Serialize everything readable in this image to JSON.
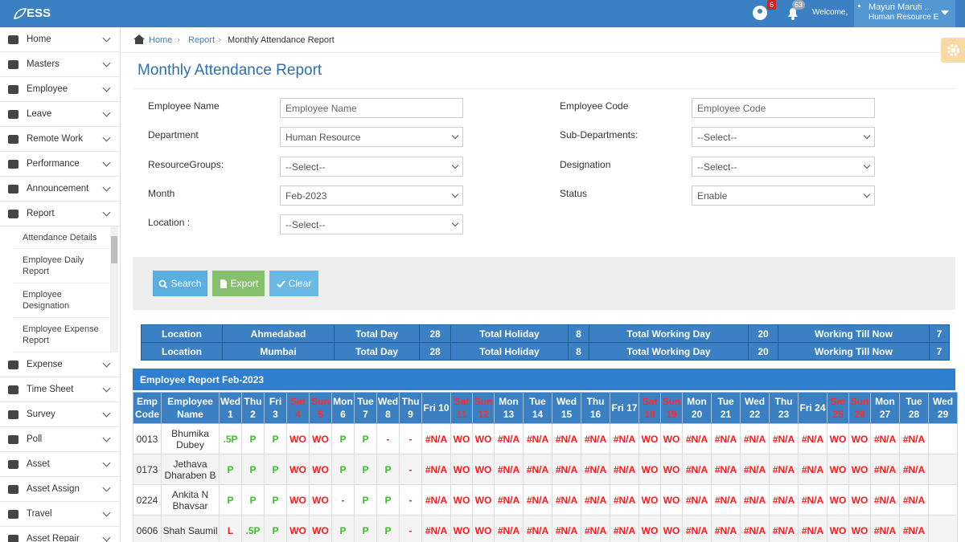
{
  "header": {
    "logo": "ESS",
    "badges": [
      6,
      63
    ],
    "welcome": "Welcome,",
    "user_name": "Mayuri Maruti ...",
    "user_role": "Human Resource E"
  },
  "menu": [
    {
      "label": "Home"
    },
    {
      "label": "Masters"
    },
    {
      "label": "Employee"
    },
    {
      "label": "Leave"
    },
    {
      "label": "Remote Work"
    },
    {
      "label": "Performance"
    },
    {
      "label": "Announcement"
    },
    {
      "label": "Report",
      "children": [
        "Attendance Details",
        "Employee Daily Report",
        "Employee Designation",
        "Employee Expense Report"
      ]
    },
    {
      "label": "Expense"
    },
    {
      "label": "Time Sheet"
    },
    {
      "label": "Survey"
    },
    {
      "label": "Poll"
    },
    {
      "label": "Asset"
    },
    {
      "label": "Asset Assign"
    },
    {
      "label": "Travel"
    },
    {
      "label": "Asset Repair"
    }
  ],
  "breadcrumb": [
    "Home",
    "Report",
    "Monthly Attendance Report"
  ],
  "page_title": "Monthly Attendance Report",
  "filters": {
    "left": [
      {
        "label": "Employee Name",
        "value": "Employee Name",
        "kind": "text"
      },
      {
        "label": "Department",
        "value": "Human Resource",
        "kind": "select"
      },
      {
        "label": "ResourceGroups:",
        "value": "--Select--",
        "kind": "select"
      },
      {
        "label": "Month",
        "value": "Feb-2023",
        "kind": "select"
      },
      {
        "label": "Location :",
        "value": "--Select--",
        "kind": "select"
      }
    ],
    "right": [
      {
        "label": "Employee Code",
        "value": "Employee Code",
        "kind": "text"
      },
      {
        "label": "Sub-Departments:",
        "value": "--Select--",
        "kind": "select"
      },
      {
        "label": "Designation",
        "value": "--Select--",
        "kind": "select"
      },
      {
        "label": "Status",
        "value": "Enable",
        "kind": "select"
      }
    ]
  },
  "buttons": [
    {
      "label": "Search",
      "color": "#5aaee0"
    },
    {
      "label": "Export",
      "color": "#86c06c"
    },
    {
      "label": "Clear",
      "color": "#6ab8e6"
    }
  ],
  "summary": [
    [
      "Location",
      "Ahmedabad",
      "Total Day",
      28,
      "Total Holiday",
      8,
      "Total Working Day",
      20,
      "Working Till Now",
      7
    ],
    [
      "Location",
      "Mumbai",
      "Total Day",
      28,
      "Total Holiday",
      8,
      "Total Working Day",
      20,
      "Working Till Now",
      7
    ]
  ],
  "report": {
    "title": "Employee Report Feb-2023",
    "columns": [
      {
        "label": "Emp Code"
      },
      {
        "label": "Employee Name"
      },
      {
        "label": "Wed 1"
      },
      {
        "label": "Thu 2"
      },
      {
        "label": "Fri 3"
      },
      {
        "label": "Sat 4",
        "color": "#ff2b2b"
      },
      {
        "label": "Sun 5",
        "color": "#ff2b2b"
      },
      {
        "label": "Mon 6"
      },
      {
        "label": "Tue 7"
      },
      {
        "label": "Wed 8"
      },
      {
        "label": "Thu 9"
      },
      {
        "label": "Fri 10"
      },
      {
        "label": "Sat 11",
        "color": "#ff2b2b"
      },
      {
        "label": "Sun 12",
        "color": "#ff2b2b"
      },
      {
        "label": "Mon 13"
      },
      {
        "label": "Tue 14"
      },
      {
        "label": "Wed 15"
      },
      {
        "label": "Thu 16"
      },
      {
        "label": "Fri 17"
      },
      {
        "label": "Sat 18",
        "color": "#ff2b2b"
      },
      {
        "label": "Sun 19",
        "color": "#ff2b2b"
      },
      {
        "label": "Mon 20"
      },
      {
        "label": "Tue 21"
      },
      {
        "label": "Wed 22"
      },
      {
        "label": "Thu 23"
      },
      {
        "label": "Fri 24"
      },
      {
        "label": "Sat 25",
        "color": "#ff2b2b"
      },
      {
        "label": "Sun 26",
        "color": "#ff2b2b"
      },
      {
        "label": "Mon 27"
      },
      {
        "label": "Tue 28"
      },
      {
        "label": "Wed 29"
      }
    ],
    "cell_colors": {
      "P": "#3fbf2a",
      ".5P": "#3fbf2a",
      "L": "#ff1a1a",
      "WO": "#ff1a1a",
      "#N/A": "#ff1a1a",
      "-": "#ff1a1a"
    },
    "rows": [
      [
        "0013",
        "Bhumika Dubey",
        ".5P",
        "P",
        "P",
        "WO",
        "WO",
        "P",
        "P",
        "-",
        "-",
        "#N/A",
        "WO",
        "WO",
        "#N/A",
        "#N/A",
        "#N/A",
        "#N/A",
        "#N/A",
        "WO",
        "WO",
        "#N/A",
        "#N/A",
        "#N/A",
        "#N/A",
        "#N/A",
        "WO",
        "WO",
        "#N/A",
        "#N/A",
        null
      ],
      [
        "0173",
        "Jethava Dharaben B",
        "P",
        "P",
        "P",
        "WO",
        "WO",
        "P",
        "P",
        "P",
        "-",
        "#N/A",
        "WO",
        "WO",
        "#N/A",
        "#N/A",
        "#N/A",
        "#N/A",
        "#N/A",
        "WO",
        "WO",
        "#N/A",
        "#N/A",
        "#N/A",
        "#N/A",
        "#N/A",
        "WO",
        "WO",
        "#N/A",
        "#N/A",
        null
      ],
      [
        "0224",
        "Ankita N Bhavsar",
        "P",
        "P",
        "P",
        "WO",
        "WO",
        "-",
        "P",
        "P",
        "-",
        "#N/A",
        "WO",
        "WO",
        "#N/A",
        "#N/A",
        "#N/A",
        "#N/A",
        "#N/A",
        "WO",
        "WO",
        "#N/A",
        "#N/A",
        "#N/A",
        "#N/A",
        "#N/A",
        "WO",
        "WO",
        "#N/A",
        "#N/A",
        null
      ],
      [
        "0606",
        "Shah Saumil",
        "L",
        ".5P",
        "P",
        "WO",
        "WO",
        "P",
        "P",
        "P",
        "-",
        "#N/A",
        "WO",
        "WO",
        "#N/A",
        "#N/A",
        "#N/A",
        "#N/A",
        "#N/A",
        "WO",
        "WO",
        "#N/A",
        "#N/A",
        "#N/A",
        "#N/A",
        "#N/A",
        "WO",
        "WO",
        "#N/A",
        "#N/A",
        null
      ]
    ]
  }
}
